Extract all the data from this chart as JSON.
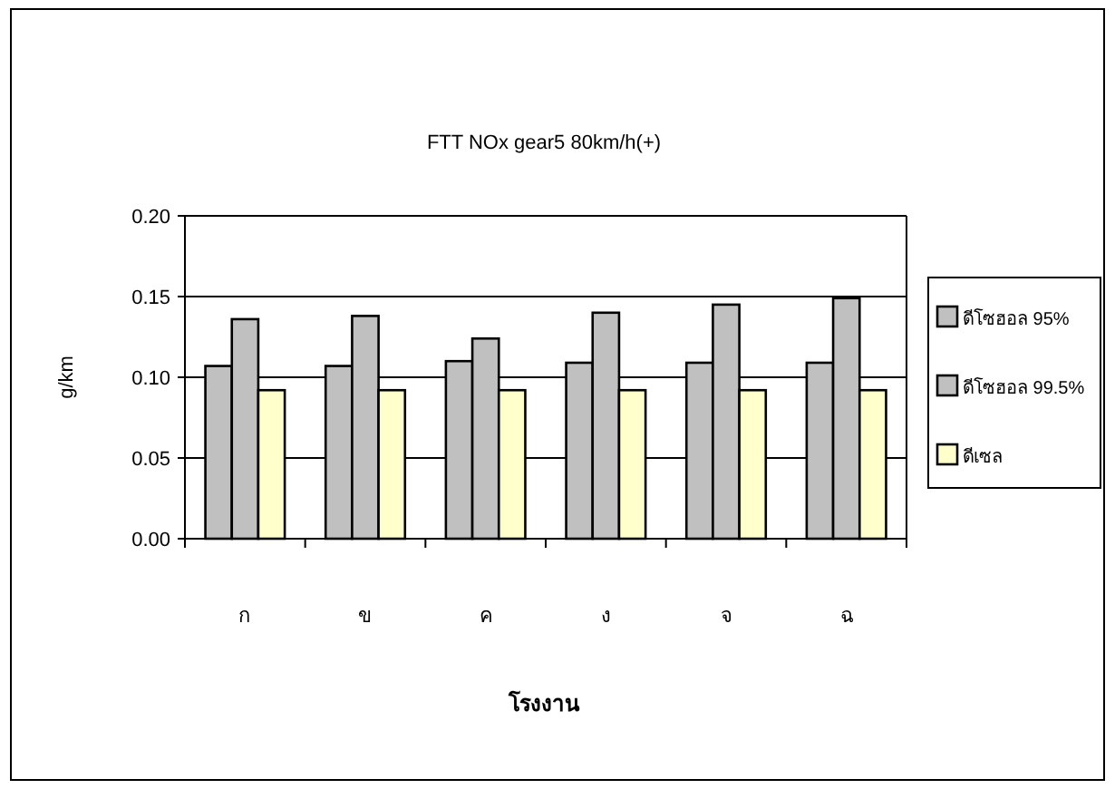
{
  "chart_data": {
    "type": "bar",
    "title": "FTT NOx gear5 80km/h(+)",
    "xlabel": "โรงงาน",
    "ylabel": "g/km",
    "categories": [
      "ก",
      "ข",
      "ค",
      "ง",
      "จ",
      "ฉ"
    ],
    "series": [
      {
        "name": "ดีโซฮอล 95%",
        "color": "#c0c0c0",
        "values": [
          0.107,
          0.107,
          0.11,
          0.109,
          0.109,
          0.109
        ]
      },
      {
        "name": "ดีโซฮอล 99.5%",
        "color": "#c0c0c0",
        "values": [
          0.136,
          0.138,
          0.124,
          0.14,
          0.145,
          0.149
        ]
      },
      {
        "name": "ดีเซล",
        "color": "#ffffcc",
        "values": [
          0.092,
          0.092,
          0.092,
          0.092,
          0.092,
          0.092
        ]
      }
    ],
    "ylim": [
      0,
      0.2
    ],
    "yticks": [
      {
        "value": 0,
        "label": "0.00"
      },
      {
        "value": 0.05,
        "label": "0.05"
      },
      {
        "value": 0.1,
        "label": "0.10"
      },
      {
        "value": 0.15,
        "label": "0.15"
      },
      {
        "value": 0.2,
        "label": "0.20"
      }
    ],
    "grid": "y",
    "legend": "right"
  }
}
